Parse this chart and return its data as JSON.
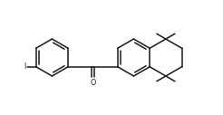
{
  "background_color": "#ffffff",
  "line_color": "#1a1a1a",
  "line_width": 1.1,
  "figsize": [
    2.46,
    1.27
  ],
  "dpi": 100,
  "xlim": [
    -0.5,
    10.5
  ],
  "ylim": [
    0.2,
    5.5
  ]
}
